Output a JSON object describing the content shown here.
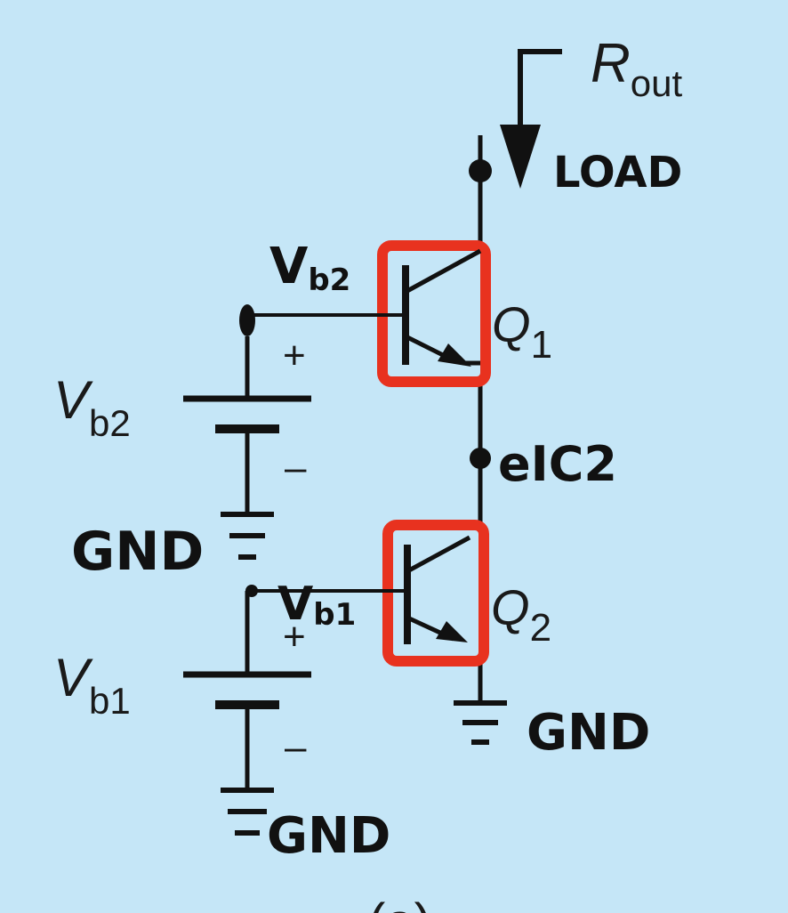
{
  "diagram": {
    "rout": {
      "symbol": "R",
      "subscript": "out"
    },
    "load_label": "LOAD",
    "q1": {
      "letter": "Q",
      "subscript": "1"
    },
    "q2": {
      "letter": "Q",
      "subscript": "2"
    },
    "node_mid_label": "eIC2",
    "vb2_hand": {
      "main": "V",
      "sub": "b2"
    },
    "vb1_hand": {
      "main": "V",
      "sub": "b1"
    },
    "vb2_battery": {
      "main": "V",
      "sub": "b2",
      "plus": "+",
      "minus": "–"
    },
    "vb1_battery": {
      "main": "V",
      "sub": "b1",
      "plus": "+",
      "minus": "–"
    },
    "gnd_left_mid": "GND",
    "gnd_bottom_left": "GND",
    "gnd_right": "GND",
    "caption": "(a)",
    "colors": {
      "wire": "#111111",
      "highlight": "#e8321f",
      "background": "#c5e6f7"
    }
  }
}
